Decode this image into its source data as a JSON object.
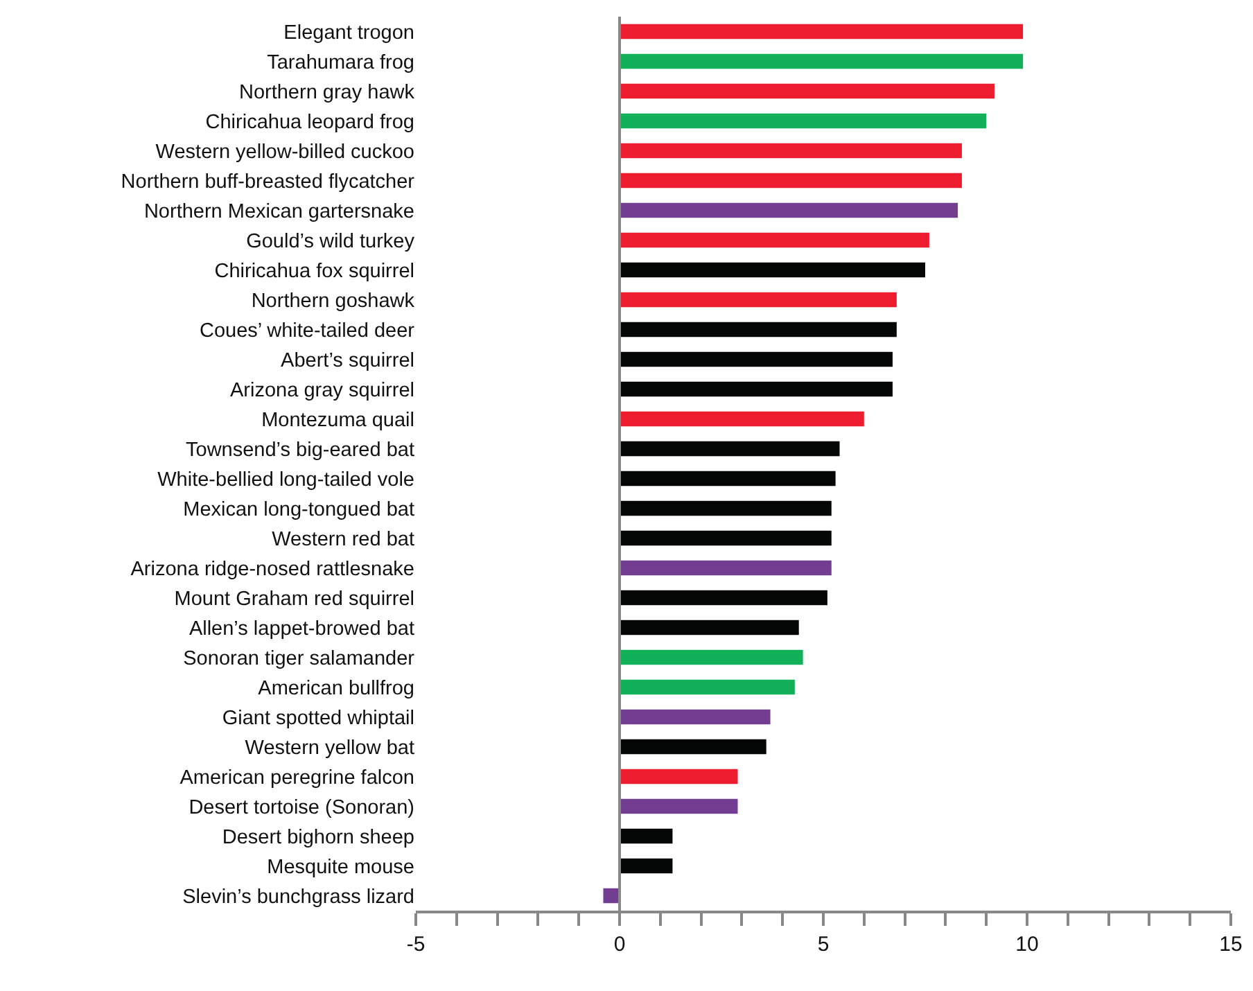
{
  "chart_data": {
    "type": "bar",
    "orientation": "horizontal",
    "categories": [
      "Elegant trogon",
      "Tarahumara frog",
      "Northern gray hawk",
      "Chiricahua leopard frog",
      "Western yellow-billed cuckoo",
      "Northern buff-breasted flycatcher",
      "Northern Mexican gartersnake",
      "Gould’s wild turkey",
      "Chiricahua fox squirrel",
      "Northern goshawk",
      "Coues’ white-tailed deer",
      "Abert’s squirrel",
      "Arizona gray squirrel",
      "Montezuma quail",
      "Townsend’s big-eared bat",
      "White-bellied long-tailed vole",
      "Mexican long-tongued bat",
      "Western red bat",
      "Arizona ridge-nosed rattlesnake",
      "Mount Graham red squirrel",
      "Allen’s lappet-browed bat",
      "Sonoran tiger salamander",
      "American bullfrog",
      "Giant spotted whiptail",
      "Western yellow bat",
      "American peregrine falcon",
      "Desert tortoise (Sonoran)",
      "Desert bighorn sheep",
      "Mesquite mouse",
      "Slevin’s bunchgrass lizard"
    ],
    "values": [
      9.9,
      9.9,
      9.2,
      9.0,
      8.4,
      8.4,
      8.3,
      7.6,
      7.5,
      6.8,
      6.8,
      6.7,
      6.7,
      6.0,
      5.4,
      5.3,
      5.2,
      5.2,
      5.2,
      5.1,
      4.4,
      4.5,
      4.3,
      3.7,
      3.6,
      2.9,
      2.9,
      1.3,
      1.3,
      -0.4
    ],
    "colors": [
      "#ed1c2e",
      "#13b05a",
      "#ed1c2e",
      "#13b05a",
      "#ed1c2e",
      "#ed1c2e",
      "#733e91",
      "#ed1c2e",
      "#050707",
      "#ed1c2e",
      "#050707",
      "#050707",
      "#050707",
      "#ed1c2e",
      "#050707",
      "#050707",
      "#050707",
      "#050707",
      "#733e91",
      "#050707",
      "#050707",
      "#13b05a",
      "#13b05a",
      "#733e91",
      "#050707",
      "#ed1c2e",
      "#733e91",
      "#050707",
      "#050707",
      "#733e91"
    ],
    "xlim": [
      -5,
      15
    ],
    "xticks": [
      -5,
      {
        "value": -4,
        "label": null
      },
      {
        "value": -3,
        "label": null
      },
      {
        "value": -2,
        "label": null
      },
      {
        "value": -1,
        "label": null
      },
      0,
      {
        "value": 1,
        "label": null
      },
      {
        "value": 2,
        "label": null
      },
      {
        "value": 3,
        "label": null
      },
      {
        "value": 4,
        "label": null
      },
      5,
      {
        "value": 6,
        "label": null
      },
      {
        "value": 7,
        "label": null
      },
      {
        "value": 8,
        "label": null
      },
      {
        "value": 9,
        "label": null
      },
      10,
      {
        "value": 11,
        "label": null
      },
      {
        "value": 12,
        "label": null
      },
      {
        "value": 13,
        "label": null
      },
      {
        "value": 14,
        "label": null
      },
      15
    ]
  }
}
